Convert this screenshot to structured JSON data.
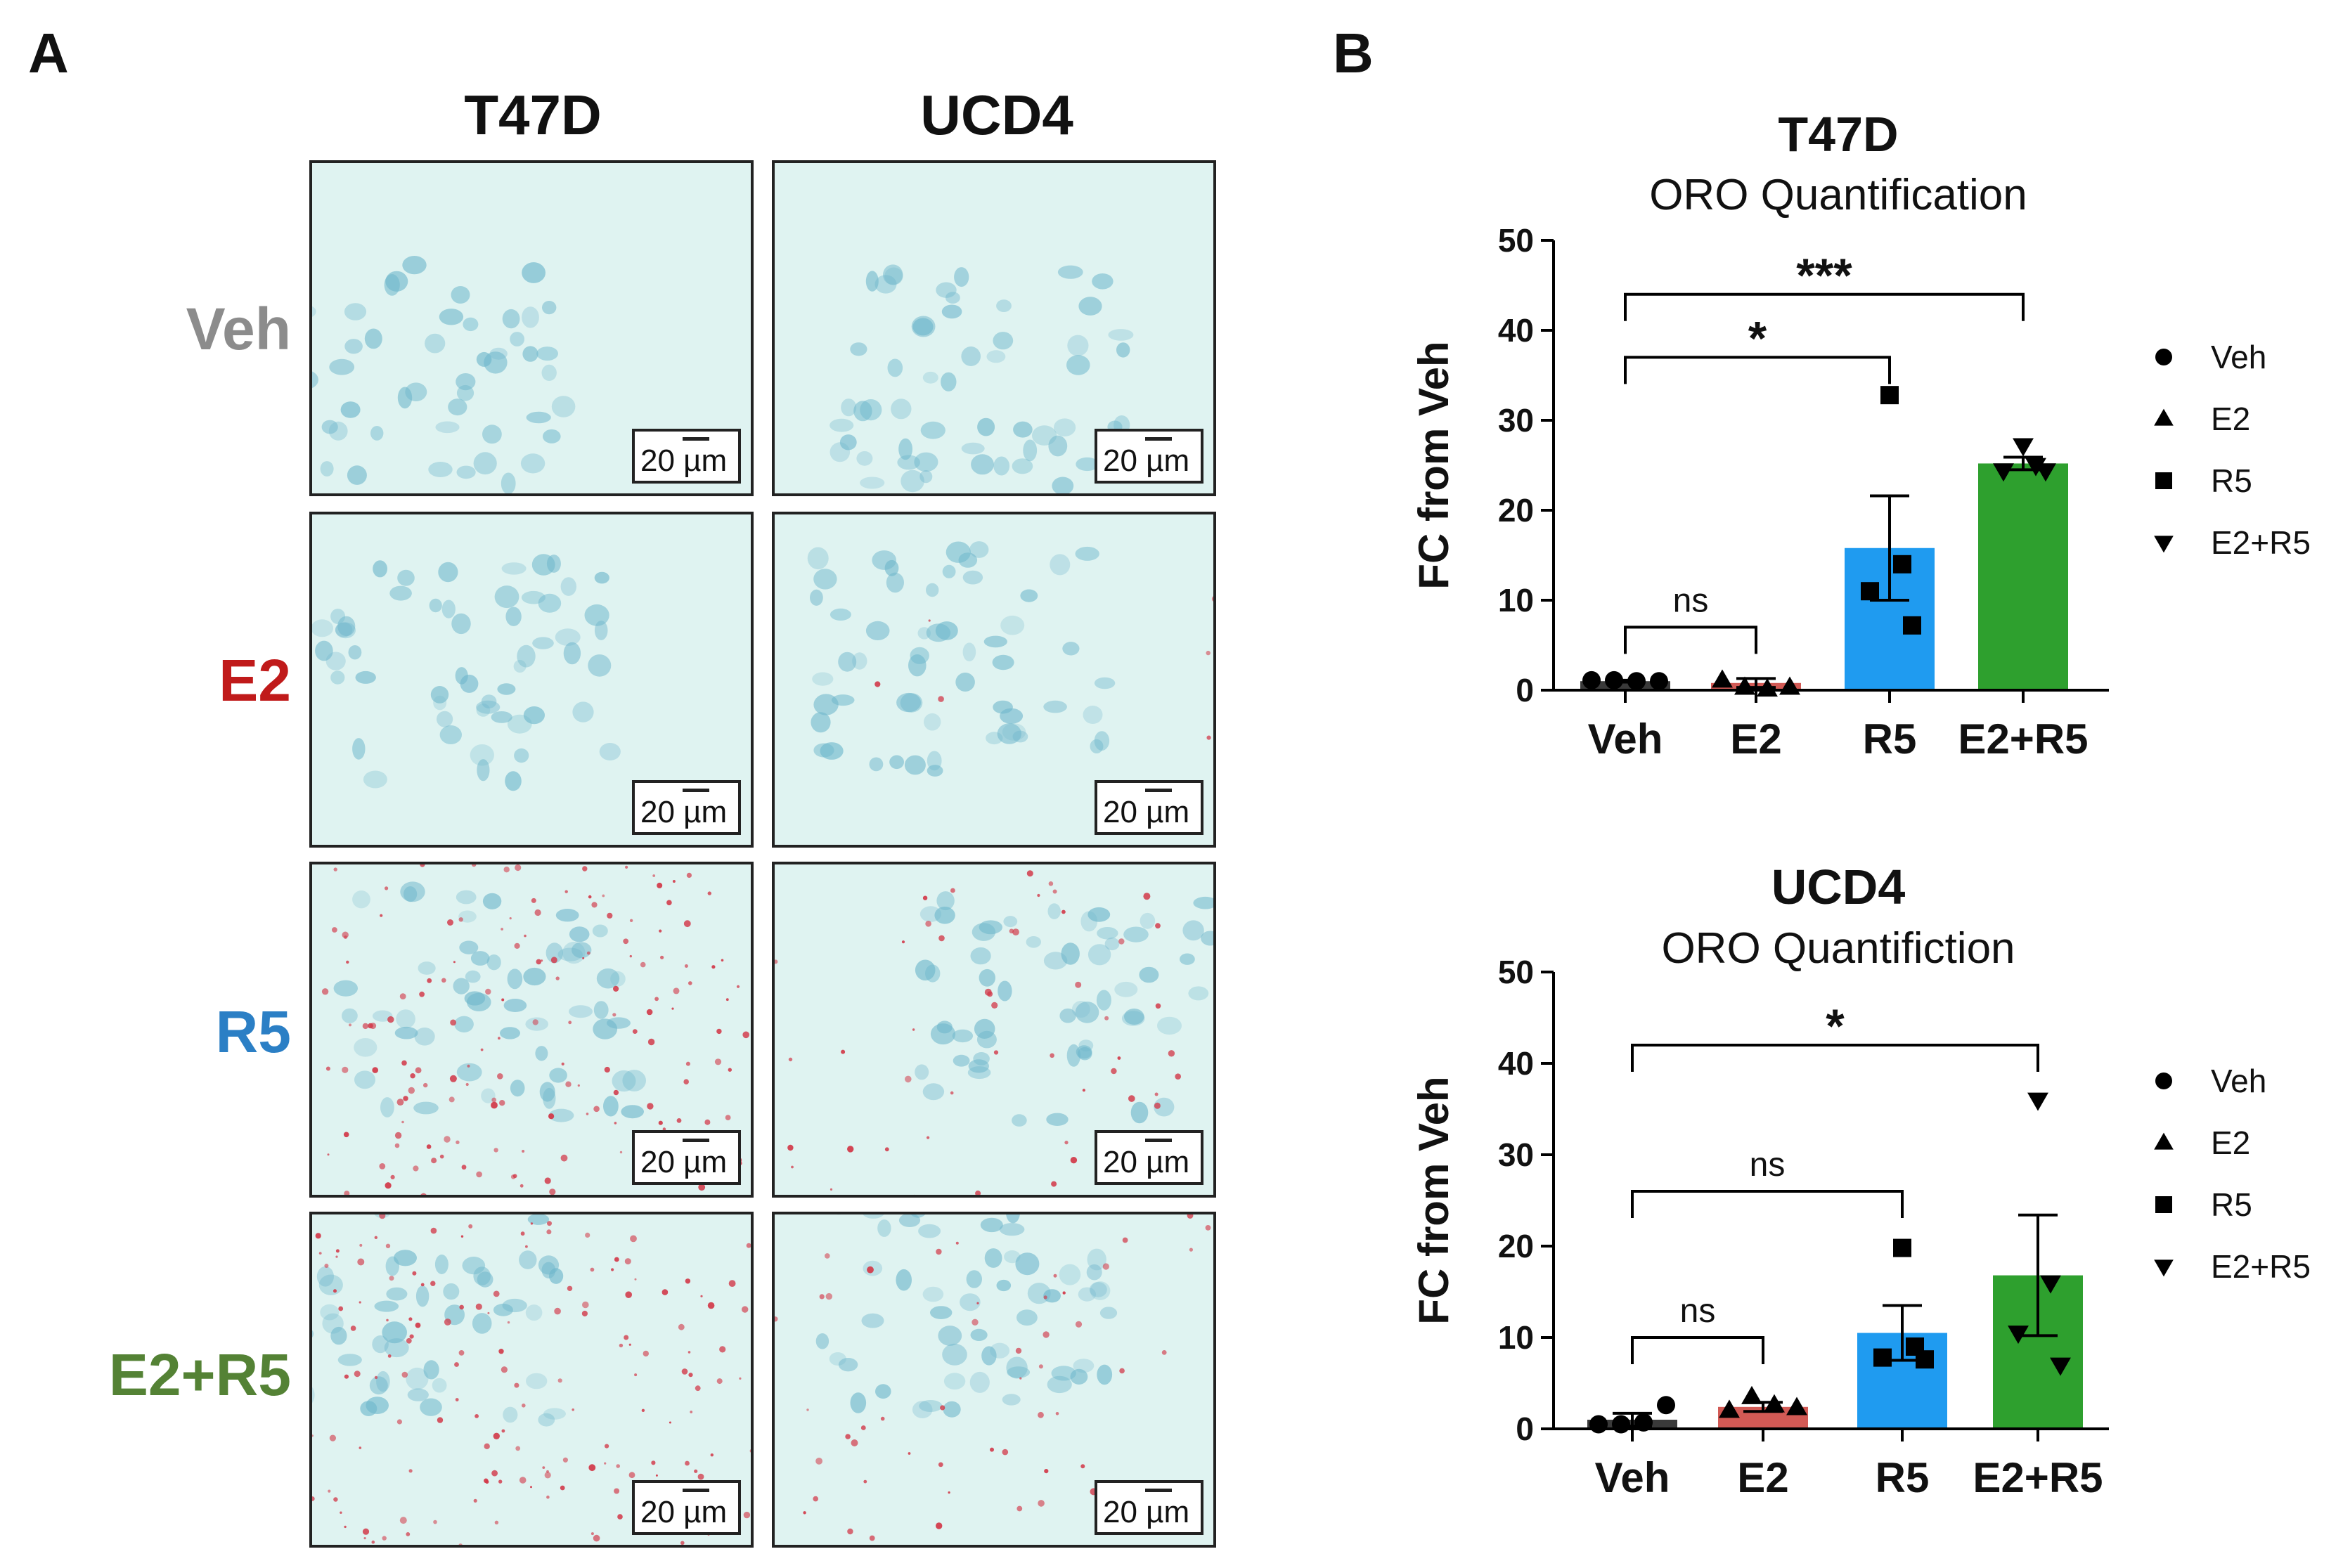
{
  "panel_a": {
    "letter": "A",
    "columns": [
      "T47D",
      "UCD4"
    ],
    "rows": [
      {
        "label": "Veh",
        "color": "#8c8c8c"
      },
      {
        "label": "E2",
        "color": "#c01a1a"
      },
      {
        "label": "R5",
        "color": "#2b7fc5"
      },
      {
        "label": "E2+R5",
        "color": "#548235"
      }
    ],
    "scale_bar_text": "20 µm",
    "image_background": "#dff3f1",
    "stain_blue": "#6fb7cc",
    "stain_red": "#d23a4a"
  },
  "panel_b": {
    "letter": "B"
  },
  "chart_data": [
    {
      "type": "bar",
      "title": "T47D",
      "subtitle": "ORO Quantification",
      "ylabel": "FC from Veh",
      "xlabel": "",
      "ylim": [
        0,
        50
      ],
      "yticks": [
        0,
        10,
        20,
        30,
        40,
        50
      ],
      "categories": [
        "Veh",
        "E2",
        "R5",
        "E2+R5"
      ],
      "values": [
        1.0,
        0.8,
        15.8,
        25.2
      ],
      "errors": [
        0.1,
        0.5,
        5.8,
        0.7
      ],
      "bar_colors": [
        "#3a3a3a",
        "#d25a55",
        "#1f9bf0",
        "#2ea02e"
      ],
      "markers": [
        "circle",
        "triangle-up",
        "square",
        "triangle-down"
      ],
      "points": [
        [
          1.1,
          1.1,
          1.0,
          1.0
        ],
        [
          1.1,
          0.3,
          0.1,
          0.3
        ],
        [
          32.8,
          14.0,
          11.0,
          7.2
        ],
        [
          27.2,
          25.0,
          24.4,
          24.4
        ]
      ],
      "legend": [
        "Veh",
        "E2",
        "R5",
        "E2+R5"
      ],
      "legend_position": "right",
      "comparisons": [
        {
          "from": "Veh",
          "to": "E2",
          "label": "ns",
          "y": 7
        },
        {
          "from": "Veh",
          "to": "R5",
          "label": "*",
          "y": 37
        },
        {
          "from": "Veh",
          "to": "E2+R5",
          "label": "***",
          "y": 44
        }
      ]
    },
    {
      "type": "bar",
      "title": "UCD4",
      "subtitle": "ORO Quantifiction",
      "ylabel": "FC from Veh",
      "xlabel": "",
      "ylim": [
        0,
        50
      ],
      "yticks": [
        0,
        10,
        20,
        30,
        40,
        50
      ],
      "categories": [
        "Veh",
        "E2",
        "R5",
        "E2+R5"
      ],
      "values": [
        1.0,
        2.4,
        10.5,
        16.8
      ],
      "errors": [
        0.7,
        0.5,
        3.0,
        6.6
      ],
      "bar_colors": [
        "#3a3a3a",
        "#d25a55",
        "#1f9bf0",
        "#2ea02e"
      ],
      "markers": [
        "circle",
        "triangle-up",
        "square",
        "triangle-down"
      ],
      "points": [
        [
          0.5,
          0.5,
          0.7,
          2.6
        ],
        [
          2.0,
          3.5,
          2.6,
          2.3
        ],
        [
          19.8,
          9.0,
          7.8,
          7.6
        ],
        [
          36.0,
          16.0,
          10.5,
          7.0
        ]
      ],
      "legend": [
        "Veh",
        "E2",
        "R5",
        "E2+R5"
      ],
      "legend_position": "right",
      "comparisons": [
        {
          "from": "Veh",
          "to": "E2",
          "label": "ns",
          "y": 10
        },
        {
          "from": "Veh",
          "to": "R5",
          "label": "ns",
          "y": 26
        },
        {
          "from": "Veh",
          "to": "E2+R5",
          "label": "*",
          "y": 42
        }
      ]
    }
  ]
}
